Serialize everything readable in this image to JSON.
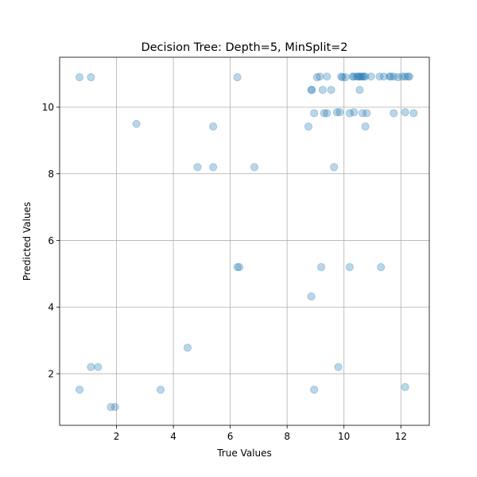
{
  "chart_data": {
    "type": "scatter",
    "title": "Decision Tree: Depth=5, MinSplit=2",
    "xlabel": "True Values",
    "ylabel": "Predicted Values",
    "xlim": [
      0.0,
      13.0
    ],
    "ylim": [
      0.45,
      11.5
    ],
    "xticks": [
      2,
      4,
      6,
      8,
      10,
      12
    ],
    "yticks": [
      2,
      4,
      6,
      8,
      10
    ],
    "grid": true,
    "legend": "none",
    "marker_color": "#1f77b4",
    "marker_alpha": 0.3,
    "points": [
      {
        "x": 0.7,
        "y": 10.9
      },
      {
        "x": 1.1,
        "y": 10.9
      },
      {
        "x": 6.25,
        "y": 10.9
      },
      {
        "x": 9.05,
        "y": 10.9
      },
      {
        "x": 9.15,
        "y": 10.92
      },
      {
        "x": 9.4,
        "y": 10.92
      },
      {
        "x": 9.9,
        "y": 10.92
      },
      {
        "x": 9.95,
        "y": 10.9
      },
      {
        "x": 10.05,
        "y": 10.9
      },
      {
        "x": 10.3,
        "y": 10.92
      },
      {
        "x": 10.35,
        "y": 10.92
      },
      {
        "x": 10.45,
        "y": 10.92
      },
      {
        "x": 10.5,
        "y": 10.92
      },
      {
        "x": 10.55,
        "y": 10.92
      },
      {
        "x": 10.6,
        "y": 10.92
      },
      {
        "x": 10.65,
        "y": 10.92
      },
      {
        "x": 10.7,
        "y": 10.92
      },
      {
        "x": 10.75,
        "y": 10.92
      },
      {
        "x": 10.95,
        "y": 10.92
      },
      {
        "x": 11.25,
        "y": 10.92
      },
      {
        "x": 11.4,
        "y": 10.92
      },
      {
        "x": 11.6,
        "y": 10.92
      },
      {
        "x": 11.65,
        "y": 10.92
      },
      {
        "x": 11.75,
        "y": 10.92
      },
      {
        "x": 11.9,
        "y": 10.9
      },
      {
        "x": 12.05,
        "y": 10.92
      },
      {
        "x": 12.15,
        "y": 10.92
      },
      {
        "x": 12.25,
        "y": 10.92
      },
      {
        "x": 12.3,
        "y": 10.92
      },
      {
        "x": 8.85,
        "y": 10.52
      },
      {
        "x": 8.87,
        "y": 10.52
      },
      {
        "x": 9.25,
        "y": 10.52
      },
      {
        "x": 9.55,
        "y": 10.52
      },
      {
        "x": 10.55,
        "y": 10.52
      },
      {
        "x": 8.95,
        "y": 9.82
      },
      {
        "x": 9.3,
        "y": 9.82
      },
      {
        "x": 9.4,
        "y": 9.82
      },
      {
        "x": 9.75,
        "y": 9.85
      },
      {
        "x": 9.85,
        "y": 9.85
      },
      {
        "x": 10.2,
        "y": 9.82
      },
      {
        "x": 10.35,
        "y": 9.85
      },
      {
        "x": 10.65,
        "y": 9.82
      },
      {
        "x": 10.8,
        "y": 9.82
      },
      {
        "x": 11.75,
        "y": 9.82
      },
      {
        "x": 12.15,
        "y": 9.85
      },
      {
        "x": 12.45,
        "y": 9.82
      },
      {
        "x": 8.75,
        "y": 9.42
      },
      {
        "x": 10.75,
        "y": 9.42
      },
      {
        "x": 2.7,
        "y": 9.5
      },
      {
        "x": 5.4,
        "y": 9.42
      },
      {
        "x": 4.85,
        "y": 8.2
      },
      {
        "x": 5.4,
        "y": 8.2
      },
      {
        "x": 6.85,
        "y": 8.2
      },
      {
        "x": 9.65,
        "y": 8.2
      },
      {
        "x": 6.25,
        "y": 5.2
      },
      {
        "x": 6.32,
        "y": 5.2
      },
      {
        "x": 9.2,
        "y": 5.2
      },
      {
        "x": 10.2,
        "y": 5.2
      },
      {
        "x": 11.3,
        "y": 5.2
      },
      {
        "x": 8.85,
        "y": 4.32
      },
      {
        "x": 4.5,
        "y": 2.78
      },
      {
        "x": 1.1,
        "y": 2.2
      },
      {
        "x": 1.35,
        "y": 2.2
      },
      {
        "x": 9.8,
        "y": 2.2
      },
      {
        "x": 0.7,
        "y": 1.52
      },
      {
        "x": 3.55,
        "y": 1.52
      },
      {
        "x": 8.95,
        "y": 1.52
      },
      {
        "x": 12.15,
        "y": 1.6
      },
      {
        "x": 1.8,
        "y": 1.0
      },
      {
        "x": 1.95,
        "y": 1.0
      }
    ]
  }
}
